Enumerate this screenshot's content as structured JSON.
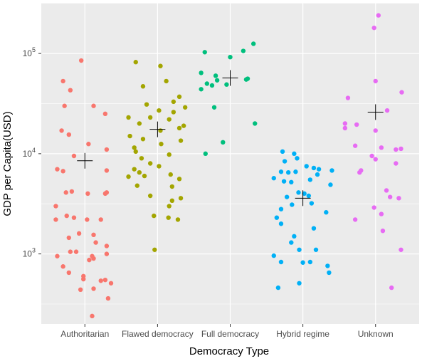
{
  "chart_data": {
    "type": "scatter",
    "title": "",
    "xlabel": "Democracy Type",
    "ylabel": "GDP per Capita(USD)",
    "y_scale": "log10",
    "ylim": [
      200,
      320000
    ],
    "y_ticks": [
      {
        "value": 1000,
        "base": "10",
        "exp": "3"
      },
      {
        "value": 10000,
        "base": "10",
        "exp": "4"
      },
      {
        "value": 100000,
        "base": "10",
        "exp": "5"
      }
    ],
    "categories": [
      "Authoritarian",
      "Flawed democracy",
      "Full democracy",
      "Hybrid regime",
      "Unknown"
    ],
    "grid": true,
    "legend": "none",
    "mean_marker": "cross",
    "series": [
      {
        "category": "Authoritarian",
        "color": "#F8766D",
        "mean": 8500,
        "points": [
          {
            "j": -0.05,
            "y": 85000
          },
          {
            "j": -0.3,
            "y": 53000
          },
          {
            "j": -0.2,
            "y": 43000
          },
          {
            "j": -0.28,
            "y": 30000
          },
          {
            "j": 0.12,
            "y": 30000
          },
          {
            "j": 0.28,
            "y": 25000
          },
          {
            "j": -0.32,
            "y": 17000
          },
          {
            "j": -0.22,
            "y": 15500
          },
          {
            "j": 0.05,
            "y": 12500
          },
          {
            "j": 0.3,
            "y": 11000
          },
          {
            "j": -0.15,
            "y": 9500
          },
          {
            "j": -0.38,
            "y": 7000
          },
          {
            "j": -0.3,
            "y": 6700
          },
          {
            "j": 0.3,
            "y": 6800
          },
          {
            "j": -0.18,
            "y": 4200
          },
          {
            "j": -0.26,
            "y": 4100
          },
          {
            "j": 0.04,
            "y": 4000
          },
          {
            "j": 0.3,
            "y": 4100
          },
          {
            "j": 0.28,
            "y": 4000
          },
          {
            "j": -0.4,
            "y": 3000
          },
          {
            "j": -0.25,
            "y": 2400
          },
          {
            "j": -0.4,
            "y": 2200
          },
          {
            "j": -0.15,
            "y": 2300
          },
          {
            "j": 0.03,
            "y": 2200
          },
          {
            "j": 0.22,
            "y": 2200
          },
          {
            "j": 0.12,
            "y": 1550
          },
          {
            "j": -0.22,
            "y": 1450
          },
          {
            "j": -0.08,
            "y": 1600
          },
          {
            "j": 0.15,
            "y": 1300
          },
          {
            "j": 0.3,
            "y": 1200
          },
          {
            "j": 0.3,
            "y": 1000
          },
          {
            "j": -0.2,
            "y": 1050
          },
          {
            "j": -0.12,
            "y": 1050
          },
          {
            "j": -0.38,
            "y": 950
          },
          {
            "j": 0.1,
            "y": 950
          },
          {
            "j": 0.12,
            "y": 900
          },
          {
            "j": 0.06,
            "y": 870
          },
          {
            "j": -0.3,
            "y": 750
          },
          {
            "j": -0.22,
            "y": 650
          },
          {
            "j": -0.02,
            "y": 600
          },
          {
            "j": -0.02,
            "y": 560
          },
          {
            "j": 0.22,
            "y": 540
          },
          {
            "j": 0.28,
            "y": 550
          },
          {
            "j": 0.36,
            "y": 510
          },
          {
            "j": -0.06,
            "y": 440
          },
          {
            "j": 0.12,
            "y": 450
          },
          {
            "j": 0.32,
            "y": 360
          },
          {
            "j": 0.1,
            "y": 240
          }
        ]
      },
      {
        "category": "Flawed democracy",
        "color": "#A3A500",
        "mean": 17500,
        "points": [
          {
            "j": -0.3,
            "y": 82000
          },
          {
            "j": 0.04,
            "y": 75000
          },
          {
            "j": 0.12,
            "y": 53000
          },
          {
            "j": -0.2,
            "y": 47000
          },
          {
            "j": 0.3,
            "y": 37000
          },
          {
            "j": 0.22,
            "y": 33000
          },
          {
            "j": -0.15,
            "y": 31000
          },
          {
            "j": 0.38,
            "y": 29000
          },
          {
            "j": 0.02,
            "y": 27000
          },
          {
            "j": 0.22,
            "y": 26000
          },
          {
            "j": -0.4,
            "y": 23000
          },
          {
            "j": -0.1,
            "y": 23000
          },
          {
            "j": 0.16,
            "y": 22000
          },
          {
            "j": -0.25,
            "y": 20000
          },
          {
            "j": 0.36,
            "y": 19000
          },
          {
            "j": 0.3,
            "y": 18000
          },
          {
            "j": 0.04,
            "y": 17000
          },
          {
            "j": -0.38,
            "y": 15000
          },
          {
            "j": -0.2,
            "y": 14000
          },
          {
            "j": 0.32,
            "y": 13500
          },
          {
            "j": 0.05,
            "y": 12500
          },
          {
            "j": -0.32,
            "y": 11500
          },
          {
            "j": -0.3,
            "y": 10500
          },
          {
            "j": 0.16,
            "y": 9800
          },
          {
            "j": -0.22,
            "y": 9000
          },
          {
            "j": -0.1,
            "y": 8000
          },
          {
            "j": 0.02,
            "y": 7500
          },
          {
            "j": -0.32,
            "y": 7000
          },
          {
            "j": -0.25,
            "y": 6500
          },
          {
            "j": 0.18,
            "y": 6200
          },
          {
            "j": -0.18,
            "y": 6000
          },
          {
            "j": -0.4,
            "y": 5900
          },
          {
            "j": 0.3,
            "y": 5600
          },
          {
            "j": -0.28,
            "y": 4800
          },
          {
            "j": 0.2,
            "y": 4700
          },
          {
            "j": -0.1,
            "y": 3800
          },
          {
            "j": 0.32,
            "y": 3600
          },
          {
            "j": 0.2,
            "y": 3400
          },
          {
            "j": 0.16,
            "y": 3000
          },
          {
            "j": -0.05,
            "y": 2400
          },
          {
            "j": 0.15,
            "y": 2300
          },
          {
            "j": 0.28,
            "y": 2200
          },
          {
            "j": -0.04,
            "y": 1100
          }
        ]
      },
      {
        "category": "Full democracy",
        "color": "#00BF7D",
        "mean": 57000,
        "points": [
          {
            "j": 0.32,
            "y": 125000
          },
          {
            "j": -0.35,
            "y": 103000
          },
          {
            "j": 0.18,
            "y": 106000
          },
          {
            "j": 0.0,
            "y": 92000
          },
          {
            "j": -0.4,
            "y": 64000
          },
          {
            "j": -0.2,
            "y": 60000
          },
          {
            "j": 0.24,
            "y": 56000
          },
          {
            "j": 0.22,
            "y": 55000
          },
          {
            "j": -0.18,
            "y": 54000
          },
          {
            "j": -0.32,
            "y": 50000
          },
          {
            "j": -0.25,
            "y": 48000
          },
          {
            "j": -0.05,
            "y": 49000
          },
          {
            "j": -0.4,
            "y": 44000
          },
          {
            "j": -0.22,
            "y": 29000
          },
          {
            "j": 0.34,
            "y": 20000
          },
          {
            "j": -0.1,
            "y": 13000
          },
          {
            "j": -0.34,
            "y": 10000
          }
        ]
      },
      {
        "category": "Hybrid regime",
        "color": "#00B0F6",
        "mean": 3600,
        "points": [
          {
            "j": -0.28,
            "y": 10500
          },
          {
            "j": -0.12,
            "y": 10000
          },
          {
            "j": -0.08,
            "y": 9000
          },
          {
            "j": -0.25,
            "y": 8400
          },
          {
            "j": 0.05,
            "y": 7500
          },
          {
            "j": 0.15,
            "y": 7200
          },
          {
            "j": 0.22,
            "y": 7000
          },
          {
            "j": 0.4,
            "y": 6800
          },
          {
            "j": -0.3,
            "y": 6600
          },
          {
            "j": -0.2,
            "y": 6500
          },
          {
            "j": -0.1,
            "y": 6600
          },
          {
            "j": 0.2,
            "y": 6200
          },
          {
            "j": -0.4,
            "y": 5700
          },
          {
            "j": -0.26,
            "y": 5300
          },
          {
            "j": -0.16,
            "y": 5200
          },
          {
            "j": 0.1,
            "y": 5500
          },
          {
            "j": 0.38,
            "y": 4900
          },
          {
            "j": -0.06,
            "y": 4100
          },
          {
            "j": 0.02,
            "y": 4000
          },
          {
            "j": -0.22,
            "y": 3700
          },
          {
            "j": 0.08,
            "y": 3800
          },
          {
            "j": -0.15,
            "y": 3100
          },
          {
            "j": 0.12,
            "y": 3200
          },
          {
            "j": -0.3,
            "y": 2800
          },
          {
            "j": 0.32,
            "y": 2600
          },
          {
            "j": -0.36,
            "y": 2300
          },
          {
            "j": -0.3,
            "y": 2000
          },
          {
            "j": 0.15,
            "y": 1800
          },
          {
            "j": -0.12,
            "y": 1500
          },
          {
            "j": -0.16,
            "y": 1300
          },
          {
            "j": -0.05,
            "y": 1100
          },
          {
            "j": 0.18,
            "y": 1100
          },
          {
            "j": -0.4,
            "y": 960
          },
          {
            "j": -0.3,
            "y": 830
          },
          {
            "j": 0.0,
            "y": 820
          },
          {
            "j": 0.1,
            "y": 830
          },
          {
            "j": 0.34,
            "y": 760
          },
          {
            "j": 0.36,
            "y": 650
          },
          {
            "j": -0.05,
            "y": 510
          },
          {
            "j": -0.34,
            "y": 460
          }
        ]
      },
      {
        "category": "Unknown",
        "color": "#E76BF3",
        "mean": 26000,
        "points": [
          {
            "j": 0.04,
            "y": 240000
          },
          {
            "j": -0.02,
            "y": 180000
          },
          {
            "j": 0.0,
            "y": 53000
          },
          {
            "j": 0.36,
            "y": 41000
          },
          {
            "j": -0.38,
            "y": 36000
          },
          {
            "j": 0.16,
            "y": 27000
          },
          {
            "j": -0.42,
            "y": 20000
          },
          {
            "j": -0.26,
            "y": 19500
          },
          {
            "j": -0.42,
            "y": 18000
          },
          {
            "j": 0.0,
            "y": 17000
          },
          {
            "j": -0.28,
            "y": 12000
          },
          {
            "j": 0.08,
            "y": 11500
          },
          {
            "j": 0.28,
            "y": 11000
          },
          {
            "j": 0.35,
            "y": 11200
          },
          {
            "j": -0.05,
            "y": 9500
          },
          {
            "j": 0.0,
            "y": 8800
          },
          {
            "j": 0.28,
            "y": 8000
          },
          {
            "j": -0.22,
            "y": 6500
          },
          {
            "j": -0.2,
            "y": 6800
          },
          {
            "j": 0.15,
            "y": 4300
          },
          {
            "j": 0.2,
            "y": 3700
          },
          {
            "j": 0.32,
            "y": 3600
          },
          {
            "j": -0.02,
            "y": 2900
          },
          {
            "j": 0.08,
            "y": 2500
          },
          {
            "j": -0.28,
            "y": 2200
          },
          {
            "j": 0.1,
            "y": 1700
          },
          {
            "j": 0.35,
            "y": 1100
          },
          {
            "j": 0.22,
            "y": 460
          }
        ]
      }
    ]
  }
}
